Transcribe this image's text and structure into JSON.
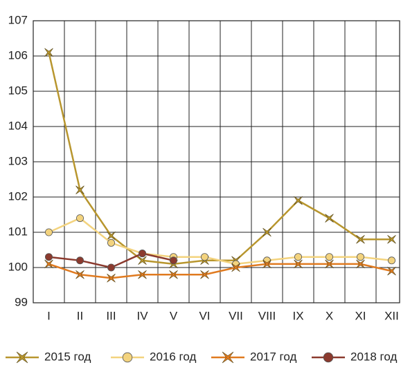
{
  "chart_data": {
    "type": "line",
    "categories": [
      "I",
      "II",
      "III",
      "IV",
      "V",
      "VI",
      "VII",
      "VIII",
      "IX",
      "X",
      "XI",
      "XII"
    ],
    "series": [
      {
        "name": "2015 год",
        "color": "#b8962e",
        "marker": "star",
        "values": [
          106.1,
          102.2,
          100.9,
          100.2,
          100.1,
          100.2,
          100.2,
          101.0,
          101.9,
          101.4,
          100.8,
          100.8
        ]
      },
      {
        "name": "2016 год",
        "color": "#f3d37e",
        "marker": "circle",
        "values": [
          101.0,
          101.4,
          100.7,
          100.4,
          100.3,
          100.3,
          100.1,
          100.2,
          100.3,
          100.3,
          100.3,
          100.2
        ]
      },
      {
        "name": "2017 год",
        "color": "#e07a1f",
        "marker": "star",
        "values": [
          100.1,
          99.8,
          99.7,
          99.8,
          99.8,
          99.8,
          100.0,
          100.1,
          100.1,
          100.1,
          100.1,
          99.9
        ]
      },
      {
        "name": "2018 год",
        "color": "#8b3a2e",
        "marker": "circle",
        "values": [
          100.3,
          100.2,
          100.0,
          100.4,
          100.2,
          null,
          null,
          null,
          null,
          null,
          null,
          null
        ]
      }
    ],
    "ylim": [
      99,
      107
    ],
    "yticks": [
      99,
      100,
      101,
      102,
      103,
      104,
      105,
      106,
      107
    ],
    "grid": true,
    "legend": "bottom"
  }
}
